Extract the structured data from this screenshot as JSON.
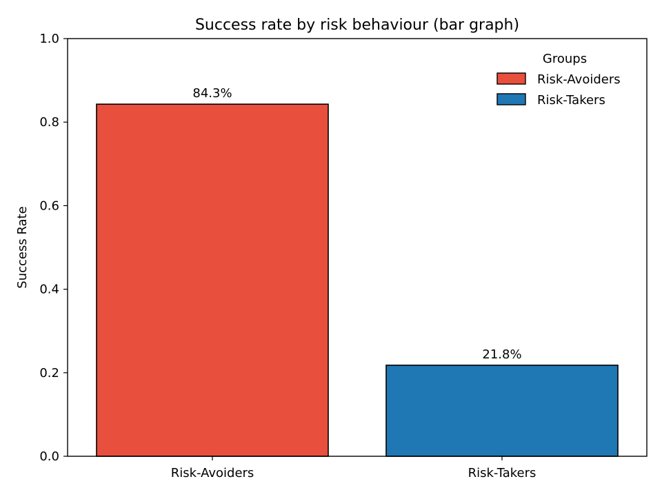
{
  "chart_data": {
    "type": "bar",
    "title": "Success rate by risk behaviour (bar graph)",
    "xlabel": "",
    "ylabel": "Success Rate",
    "ylim": [
      0,
      1.0
    ],
    "yticks": [
      "0.0",
      "0.2",
      "0.4",
      "0.6",
      "0.8",
      "1.0"
    ],
    "ytick_values": [
      0,
      0.2,
      0.4,
      0.6,
      0.8,
      1.0
    ],
    "categories": [
      "Risk-Avoiders",
      "Risk-Takers"
    ],
    "values": [
      0.843,
      0.218
    ],
    "value_labels": [
      "84.3%",
      "21.8%"
    ],
    "colors": [
      "#e84f3d",
      "#1f77b4"
    ],
    "grid": false,
    "legend": {
      "title": "Groups",
      "placement": "top-right",
      "entries": [
        "Risk-Avoiders",
        "Risk-Takers"
      ]
    }
  }
}
